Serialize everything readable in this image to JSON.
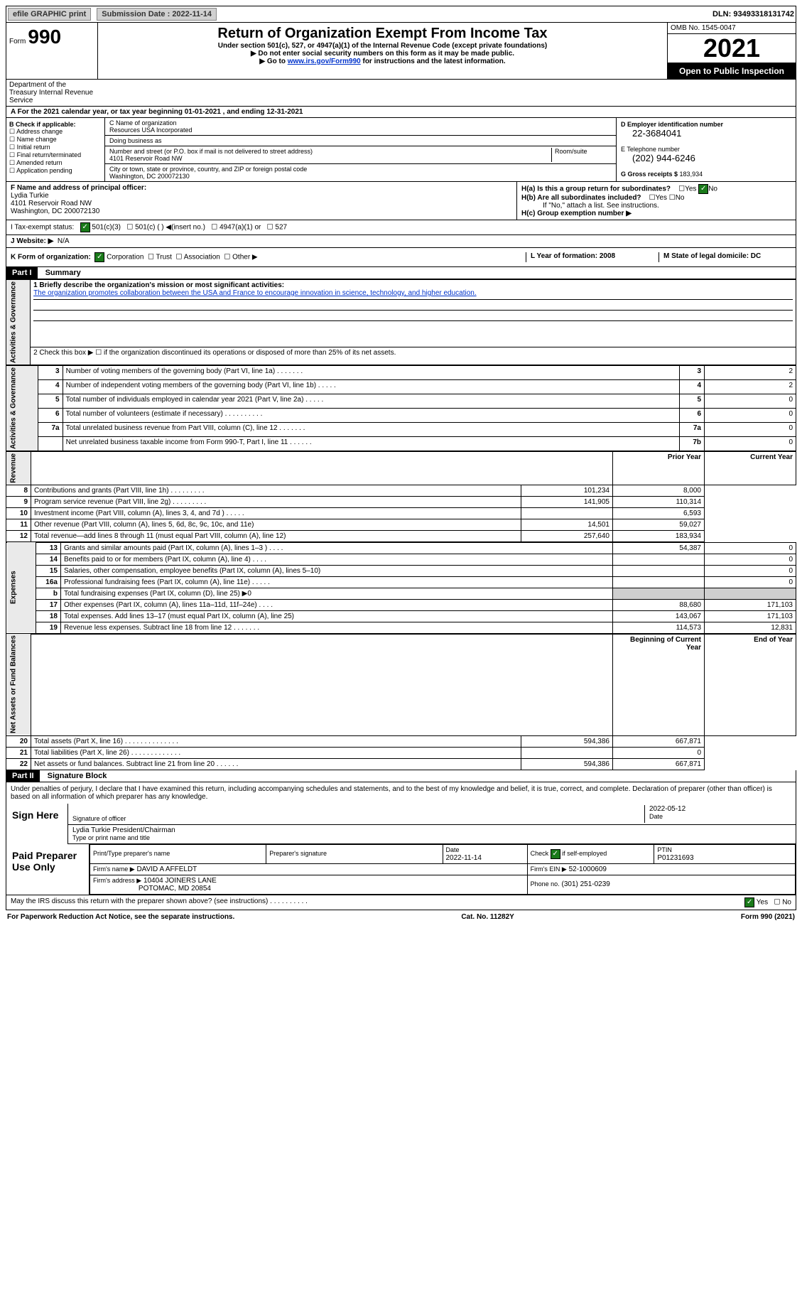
{
  "topbar": {
    "efile": "efile GRAPHIC print",
    "submission_label": "Submission Date : 2022-11-14",
    "dln_label": "DLN: 93493318131742"
  },
  "header": {
    "form_prefix": "Form",
    "form_num": "990",
    "dept": "Department of the Treasury\nInternal Revenue Service",
    "title": "Return of Organization Exempt From Income Tax",
    "sub1": "Under section 501(c), 527, or 4947(a)(1) of the Internal Revenue Code (except private foundations)",
    "sub2": "▶ Do not enter social security numbers on this form as it may be made public.",
    "sub3_pre": "▶ Go to ",
    "sub3_link": "www.irs.gov/Form990",
    "sub3_post": " for instructions and the latest information.",
    "omb": "OMB No. 1545-0047",
    "year": "2021",
    "open": "Open to Public Inspection"
  },
  "sectionA": {
    "text": "A For the 2021 calendar year, or tax year beginning 01-01-2021   , and ending 12-31-2021"
  },
  "sectionB": {
    "title": "B Check if applicable:",
    "items": [
      "Address change",
      "Name change",
      "Initial return",
      "Final return/terminated",
      "Amended return",
      "Application pending"
    ]
  },
  "sectionC": {
    "name_label": "C Name of organization",
    "name": "Resources USA Incorporated",
    "dba_label": "Doing business as",
    "dba": "",
    "addr_label": "Number and street (or P.O. box if mail is not delivered to street address)",
    "room_label": "Room/suite",
    "addr": "4101 Reservoir Road NW",
    "city_label": "City or town, state or province, country, and ZIP or foreign postal code",
    "city": "Washington, DC  200072130"
  },
  "sectionD": {
    "ein_label": "D Employer identification number",
    "ein": "22-3684041",
    "tel_label": "E Telephone number",
    "tel": "(202) 944-6246",
    "gross_label": "G Gross receipts $ ",
    "gross": "183,934"
  },
  "sectionF": {
    "label": "F Name and address of principal officer:",
    "name": "Lydia Turkie",
    "addr1": "4101 Reservoir Road NW",
    "addr2": "Washington, DC  200072130"
  },
  "sectionH": {
    "a": "H(a)  Is this a group return for subordinates?",
    "b": "H(b)  Are all subordinates included?",
    "attach": "If \"No,\" attach a list. See instructions.",
    "c": "H(c)  Group exemption number ▶",
    "yes": "Yes",
    "no": "No"
  },
  "rowI": {
    "label": "I   Tax-exempt status:",
    "opt1": "501(c)(3)",
    "opt2": "501(c) (  ) ◀(insert no.)",
    "opt3": "4947(a)(1) or",
    "opt4": "527"
  },
  "rowJ": {
    "label": "J   Website: ▶",
    "val": "N/A"
  },
  "rowK": {
    "label": "K Form of organization:",
    "corp": "Corporation",
    "trust": "Trust",
    "assoc": "Association",
    "other": "Other ▶",
    "L": "L Year of formation: 2008",
    "M": "M State of legal domicile: DC"
  },
  "partI": {
    "label": "Part I",
    "title": "Summary"
  },
  "summary": {
    "line1_label": "1  Briefly describe the organization's mission or most significant activities:",
    "line1_val": "The organization promotes collaboration between the USA and France to encourage innovation in science, technology, and higher education.",
    "line2": "2   Check this box ▶ ☐  if the organization discontinued its operations or disposed of more than 25% of its net assets.",
    "governance_label": "Activities & Governance",
    "revenue_label": "Revenue",
    "expenses_label": "Expenses",
    "netassets_label": "Net Assets or Fund Balances",
    "prior": "Prior Year",
    "current": "Current Year",
    "begin": "Beginning of Current Year",
    "end": "End of Year",
    "rows_gov": [
      {
        "n": "3",
        "t": "Number of voting members of the governing body (Part VI, line 1a)   .    .    .    .    .    .    .",
        "k": "3",
        "v": "2"
      },
      {
        "n": "4",
        "t": "Number of independent voting members of the governing body (Part VI, line 1b)  .    .    .    .    .",
        "k": "4",
        "v": "2"
      },
      {
        "n": "5",
        "t": "Total number of individuals employed in calendar year 2021 (Part V, line 2a)   .    .    .    .    .",
        "k": "5",
        "v": "0"
      },
      {
        "n": "6",
        "t": "Total number of volunteers (estimate if necessary)   .    .    .    .    .    .    .    .    .    .",
        "k": "6",
        "v": "0"
      },
      {
        "n": "7a",
        "t": "Total unrelated business revenue from Part VIII, column (C), line 12  .    .    .    .    .    .    .",
        "k": "7a",
        "v": "0"
      },
      {
        "n": "",
        "t": "Net unrelated business taxable income from Form 990-T, Part I, line 11  .    .    .    .    .    .",
        "k": "7b",
        "v": "0"
      }
    ],
    "rows_rev": [
      {
        "n": "8",
        "t": "Contributions and grants (Part VIII, line 1h)   .    .    .    .    .    .    .    .    .",
        "p": "101,234",
        "c": "8,000"
      },
      {
        "n": "9",
        "t": "Program service revenue (Part VIII, line 2g)   .    .    .    .    .    .    .    .    .",
        "p": "141,905",
        "c": "110,314"
      },
      {
        "n": "10",
        "t": "Investment income (Part VIII, column (A), lines 3, 4, and 7d )  .    .    .    .    .",
        "p": "",
        "c": "6,593"
      },
      {
        "n": "11",
        "t": "Other revenue (Part VIII, column (A), lines 5, 6d, 8c, 9c, 10c, and 11e)",
        "p": "14,501",
        "c": "59,027"
      },
      {
        "n": "12",
        "t": "Total revenue—add lines 8 through 11 (must equal Part VIII, column (A), line 12)",
        "p": "257,640",
        "c": "183,934"
      }
    ],
    "rows_exp": [
      {
        "n": "13",
        "t": "Grants and similar amounts paid (Part IX, column (A), lines 1–3 )  .    .    .    .",
        "p": "54,387",
        "c": "0"
      },
      {
        "n": "14",
        "t": "Benefits paid to or for members (Part IX, column (A), line 4)  .    .    .    .",
        "p": "",
        "c": "0"
      },
      {
        "n": "15",
        "t": "Salaries, other compensation, employee benefits (Part IX, column (A), lines 5–10)",
        "p": "",
        "c": "0"
      },
      {
        "n": "16a",
        "t": "Professional fundraising fees (Part IX, column (A), line 11e)  .    .    .    .    .",
        "p": "",
        "c": "0"
      },
      {
        "n": "b",
        "t": "Total fundraising expenses (Part IX, column (D), line 25) ▶0",
        "p": "grey",
        "c": "grey"
      },
      {
        "n": "17",
        "t": "Other expenses (Part IX, column (A), lines 11a–11d, 11f–24e)  .    .    .    .",
        "p": "88,680",
        "c": "171,103"
      },
      {
        "n": "18",
        "t": "Total expenses. Add lines 13–17 (must equal Part IX, column (A), line 25)",
        "p": "143,067",
        "c": "171,103"
      },
      {
        "n": "19",
        "t": "Revenue less expenses. Subtract line 18 from line 12  .    .    .    .    .    .    .",
        "p": "114,573",
        "c": "12,831"
      }
    ],
    "rows_net": [
      {
        "n": "20",
        "t": "Total assets (Part X, line 16)  .    .    .    .    .    .    .    .    .    .    .    .    .    .",
        "p": "594,386",
        "c": "667,871"
      },
      {
        "n": "21",
        "t": "Total liabilities (Part X, line 26)  .    .    .    .    .    .    .    .    .    .    .    .    .",
        "p": "",
        "c": "0"
      },
      {
        "n": "22",
        "t": "Net assets or fund balances. Subtract line 21 from line 20  .    .    .    .    .    .",
        "p": "594,386",
        "c": "667,871"
      }
    ]
  },
  "partII": {
    "label": "Part II",
    "title": "Signature Block"
  },
  "sig": {
    "penalty": "Under penalties of perjury, I declare that I have examined this return, including accompanying schedules and statements, and to the best of my knowledge and belief, it is true, correct, and complete. Declaration of preparer (other than officer) is based on all information of which preparer has any knowledge.",
    "sign_here": "Sign Here",
    "officer_sig": "Signature of officer",
    "date": "2022-05-12",
    "date_label": "Date",
    "officer_name": "Lydia Turkie  President/Chairman",
    "type_name": "Type or print name and title",
    "paid": "Paid Preparer Use Only",
    "prep_name_label": "Print/Type preparer's name",
    "prep_sig_label": "Preparer's signature",
    "prep_date_label": "Date",
    "prep_date": "2022-11-14",
    "check_label": "Check ☑ if self-employed",
    "ptin_label": "PTIN",
    "ptin": "P01231693",
    "firm_name_label": "Firm's name    ▶",
    "firm_name": "DAVID A AFFELDT",
    "firm_ein_label": "Firm's EIN ▶",
    "firm_ein": "52-1000609",
    "firm_addr_label": "Firm's address ▶",
    "firm_addr1": "10404 JOINERS LANE",
    "firm_addr2": "POTOMAC, MD  20854",
    "phone_label": "Phone no.",
    "phone": "(301) 251-0239",
    "discuss": "May the IRS discuss this return with the preparer shown above? (see instructions)   .    .    .    .    .    .    .    .    .    .",
    "yes": "Yes",
    "no": "No"
  },
  "footer": {
    "paperwork": "For Paperwork Reduction Act Notice, see the separate instructions.",
    "cat": "Cat. No. 11282Y",
    "form": "Form 990 (2021)"
  }
}
